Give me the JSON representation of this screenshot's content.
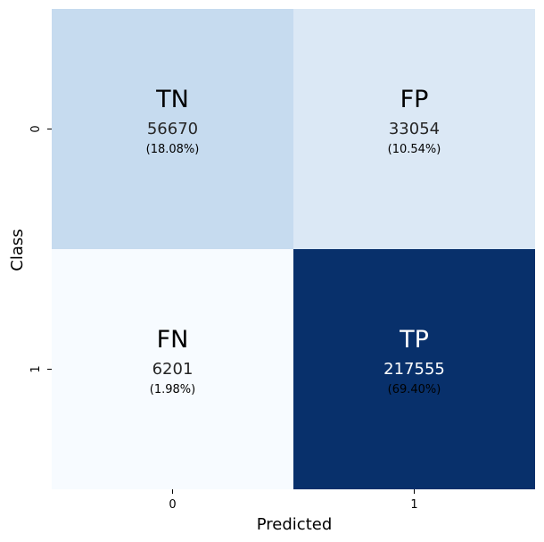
{
  "chart_data": {
    "type": "heatmap",
    "xlabel": "Predicted",
    "ylabel": "Class",
    "x_ticks": [
      "0",
      "1"
    ],
    "y_ticks": [
      "0",
      "1"
    ],
    "cells": [
      {
        "row": 0,
        "col": 0,
        "label": "TN",
        "count": "56670",
        "pct": "(18.08%)",
        "value": 56670,
        "color": "#c6dbef"
      },
      {
        "row": 0,
        "col": 1,
        "label": "FP",
        "count": "33054",
        "pct": "(10.54%)",
        "value": 33054,
        "color": "#dbe8f5"
      },
      {
        "row": 1,
        "col": 0,
        "label": "FN",
        "count": "6201",
        "pct": "(1.98%)",
        "value": 6201,
        "color": "#f7fbff"
      },
      {
        "row": 1,
        "col": 1,
        "label": "TP",
        "count": "217555",
        "pct": "(69.40%)",
        "value": 217555,
        "color": "#08306b"
      }
    ],
    "text_colors": {
      "dark": "#262626",
      "light": "#ffffff",
      "black": "#000000"
    }
  }
}
